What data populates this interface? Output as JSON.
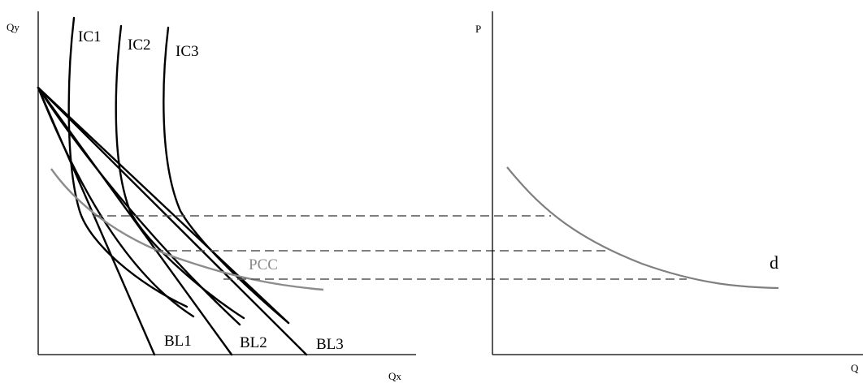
{
  "left_panel": {
    "y_axis_label": "Qy",
    "x_axis_label": "Qx",
    "indifference_curves": [
      "IC1",
      "IC2",
      "IC3"
    ],
    "budget_lines": [
      "BL1",
      "BL2",
      "BL3"
    ],
    "price_consumption_curve": "PCC"
  },
  "right_panel": {
    "y_axis_label": "P",
    "x_axis_label": "Q",
    "demand_curve_label": "d"
  },
  "colors": {
    "lines": "#000000",
    "pcc": "#8c8c8c",
    "demand": "#7f7f7f",
    "dashed": "#555555"
  }
}
